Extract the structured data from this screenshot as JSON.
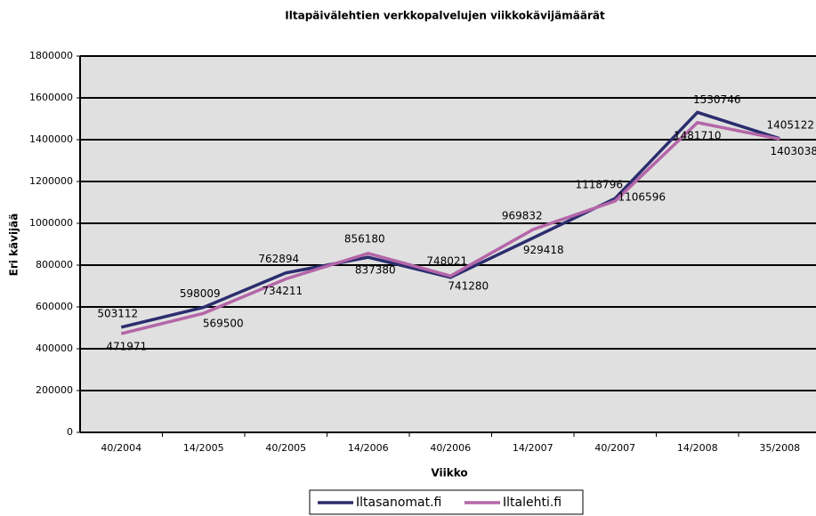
{
  "chart_data": {
    "type": "line",
    "title": "Iltapäivälehtien verkkopalvelujen viikkokävijämäärät",
    "x_label": "Viikko",
    "y_label": "Eri kävijää",
    "categories": [
      "40/2004",
      "14/2005",
      "40/2005",
      "14/2006",
      "40/2006",
      "14/2007",
      "40/2007",
      "14/2008",
      "35/2008"
    ],
    "series": [
      {
        "name": "Iltasanomat.fi",
        "color": "#2b2d6e",
        "values": [
          503112,
          598009,
          762894,
          837380,
          741280,
          929418,
          1118796,
          1530746,
          1405122
        ]
      },
      {
        "name": "Iltalehti.fi",
        "color": "#b466a8",
        "values": [
          471971,
          569500,
          734211,
          856180,
          748021,
          969832,
          1106596,
          1481710,
          1403038
        ]
      }
    ],
    "ylim": [
      0,
      1800000
    ],
    "yticks": [
      0,
      200000,
      400000,
      600000,
      800000,
      1000000,
      1200000,
      1400000,
      1600000,
      1800000
    ],
    "grid": true,
    "legend": "bottom"
  }
}
